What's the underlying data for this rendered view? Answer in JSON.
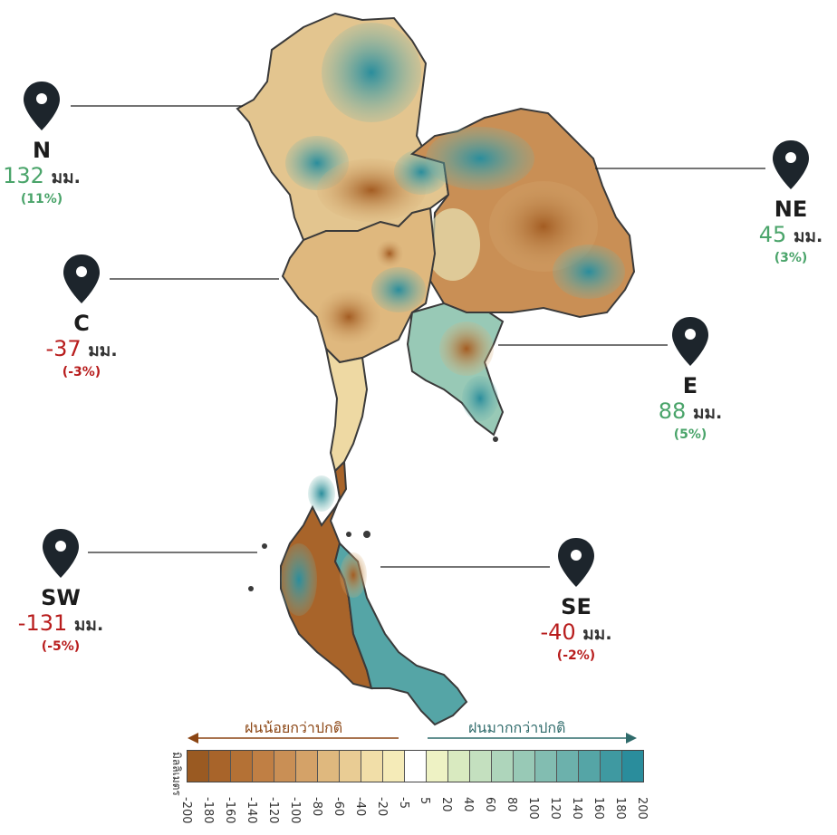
{
  "regions": [
    {
      "code": "N",
      "amount": "132",
      "unit": "มม.",
      "percent": "(11%)",
      "sign": "pos"
    },
    {
      "code": "NE",
      "amount": "45",
      "unit": "มม.",
      "percent": "(3%)",
      "sign": "pos"
    },
    {
      "code": "C",
      "amount": "-37",
      "unit": "มม.",
      "percent": "(-3%)",
      "sign": "neg"
    },
    {
      "code": "E",
      "amount": "88",
      "unit": "มม.",
      "percent": "(5%)",
      "sign": "pos"
    },
    {
      "code": "SW",
      "amount": "-131",
      "unit": "มม.",
      "percent": "(-5%)",
      "sign": "neg"
    },
    {
      "code": "SE",
      "amount": "-40",
      "unit": "มม.",
      "percent": "(-2%)",
      "sign": "neg"
    }
  ],
  "legend": {
    "below_normal_label": "ฝนน้อยกว่าปกติ",
    "above_normal_label": "ฝนมากกว่าปกติ",
    "unit_label": "มิลลิเมตร",
    "ticks": [
      "-200",
      "-180",
      "-160",
      "-140",
      "-120",
      "-100",
      "-80",
      "-60",
      "-40",
      "-20",
      "-5",
      "5",
      "20",
      "40",
      "60",
      "80",
      "100",
      "120",
      "140",
      "160",
      "180",
      "200"
    ],
    "colors": [
      "#9a5a22",
      "#a8642a",
      "#b47135",
      "#c07f44",
      "#c98f55",
      "#d4a268",
      "#dfb87e",
      "#e9cc94",
      "#f1dea8",
      "#f5ebb8",
      "#ffffff",
      "#eef2c4",
      "#d9eac0",
      "#c4e0bf",
      "#aed5bb",
      "#98c9b6",
      "#82bdb1",
      "#6cb1ac",
      "#55a5a6",
      "#3f99a1",
      "#2a8d9c"
    ],
    "below_color": "#8b4513",
    "above_color": "#2f6b6b"
  }
}
